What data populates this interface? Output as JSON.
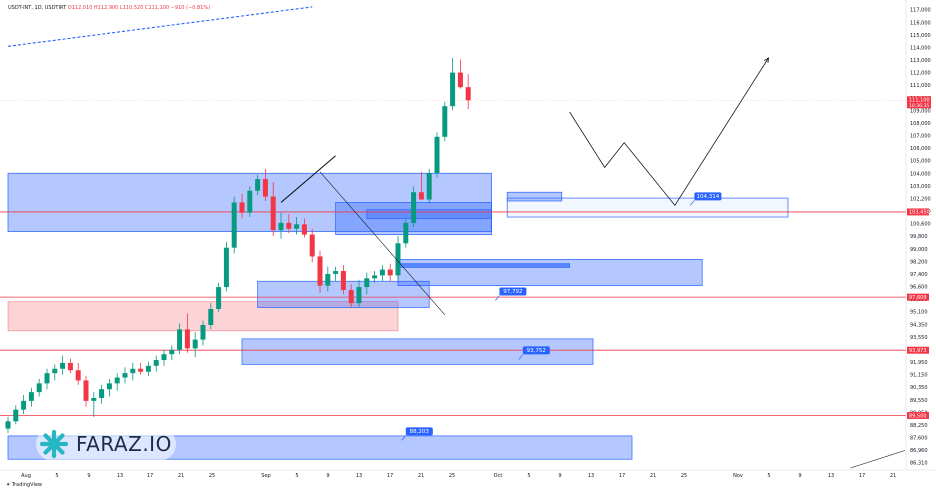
{
  "header": {
    "symbol": "USDT-INT, 1D, USDTIRT",
    "ohlc": "O112,010 H112,900 L110,520 C111,100 −910 (−0.81%)"
  },
  "watermark": {
    "brand": "FARAZ.IO",
    "brand_color": "#26b6c4"
  },
  "footer": {
    "credit": "TradingView"
  },
  "colors": {
    "up": "#089981",
    "down": "#f23645",
    "zone": "#2962ff",
    "level": "#f23645"
  },
  "chart_data": {
    "type": "candlestick",
    "y_axis": {
      "ylim": [
        85900,
        117700
      ],
      "ticks": [
        "117,000",
        "116,000",
        "115,000",
        "114,000",
        "113,000",
        "112,000",
        "111,000",
        "110,000",
        "109,000",
        "108,000",
        "107,000",
        "106,000",
        "105,000",
        "104,000",
        "103,000",
        "102,200",
        "101,400",
        "100,600",
        "99,800",
        "99,000",
        "98,200",
        "97,400",
        "96,600",
        "95,850",
        "95,100",
        "94,350",
        "93,550",
        "92,750",
        "91,950",
        "91,150",
        "90,350",
        "89,550",
        "88,950",
        "88,250",
        "87,600",
        "86,960",
        "86,310"
      ],
      "current_price": "111,100",
      "countdown": "10:36:35",
      "level_tags": [
        "103,450",
        "97,609",
        "93,973",
        "89,500"
      ]
    },
    "x_axis": {
      "ticks": [
        "Aug",
        "5",
        "9",
        "13",
        "17",
        "21",
        "25",
        "Sep",
        "5",
        "9",
        "13",
        "17",
        "21",
        "25",
        "Oct",
        "5",
        "9",
        "13",
        "17",
        "21",
        "25",
        "Nov",
        "5",
        "9",
        "13",
        "17",
        "21"
      ]
    },
    "candles": [
      {
        "o": 88600,
        "h": 89400,
        "l": 88300,
        "c": 89100
      },
      {
        "o": 89100,
        "h": 90200,
        "l": 88900,
        "c": 89900
      },
      {
        "o": 89900,
        "h": 90900,
        "l": 89600,
        "c": 90500
      },
      {
        "o": 90500,
        "h": 91400,
        "l": 90100,
        "c": 91100
      },
      {
        "o": 91100,
        "h": 92000,
        "l": 90800,
        "c": 91700
      },
      {
        "o": 91700,
        "h": 92700,
        "l": 91300,
        "c": 92400
      },
      {
        "o": 92400,
        "h": 93000,
        "l": 91900,
        "c": 92700
      },
      {
        "o": 92700,
        "h": 93600,
        "l": 92300,
        "c": 93100
      },
      {
        "o": 93100,
        "h": 93400,
        "l": 92400,
        "c": 92600
      },
      {
        "o": 92600,
        "h": 93100,
        "l": 91600,
        "c": 91900
      },
      {
        "o": 91900,
        "h": 92200,
        "l": 90100,
        "c": 90500
      },
      {
        "o": 90500,
        "h": 91100,
        "l": 89400,
        "c": 90700
      },
      {
        "o": 90700,
        "h": 91600,
        "l": 90300,
        "c": 91300
      },
      {
        "o": 91300,
        "h": 92000,
        "l": 90800,
        "c": 91700
      },
      {
        "o": 91700,
        "h": 92400,
        "l": 91200,
        "c": 92100
      },
      {
        "o": 92100,
        "h": 92800,
        "l": 91700,
        "c": 92400
      },
      {
        "o": 92400,
        "h": 93100,
        "l": 91900,
        "c": 92700
      },
      {
        "o": 92700,
        "h": 93100,
        "l": 92300,
        "c": 92500
      },
      {
        "o": 92500,
        "h": 93200,
        "l": 92200,
        "c": 92900
      },
      {
        "o": 92900,
        "h": 93600,
        "l": 92500,
        "c": 93300
      },
      {
        "o": 93300,
        "h": 94000,
        "l": 92900,
        "c": 93700
      },
      {
        "o": 93700,
        "h": 94300,
        "l": 93300,
        "c": 94000
      },
      {
        "o": 94000,
        "h": 95800,
        "l": 93700,
        "c": 95400
      },
      {
        "o": 95400,
        "h": 96500,
        "l": 93800,
        "c": 94100
      },
      {
        "o": 94100,
        "h": 95200,
        "l": 93500,
        "c": 94700
      },
      {
        "o": 94700,
        "h": 96000,
        "l": 94300,
        "c": 95700
      },
      {
        "o": 95700,
        "h": 97200,
        "l": 95400,
        "c": 96800
      },
      {
        "o": 96800,
        "h": 98600,
        "l": 96600,
        "c": 98300
      },
      {
        "o": 98300,
        "h": 101400,
        "l": 98000,
        "c": 101000
      },
      {
        "o": 101000,
        "h": 104500,
        "l": 100600,
        "c": 104100
      },
      {
        "o": 104100,
        "h": 104700,
        "l": 103000,
        "c": 103400
      },
      {
        "o": 103400,
        "h": 105200,
        "l": 103100,
        "c": 104900
      },
      {
        "o": 104900,
        "h": 106000,
        "l": 104600,
        "c": 105700
      },
      {
        "o": 105700,
        "h": 106400,
        "l": 104200,
        "c": 104500
      },
      {
        "o": 104500,
        "h": 105500,
        "l": 101800,
        "c": 102200
      },
      {
        "o": 102200,
        "h": 103400,
        "l": 101600,
        "c": 102700
      },
      {
        "o": 102700,
        "h": 103300,
        "l": 102000,
        "c": 102300
      },
      {
        "o": 102300,
        "h": 103100,
        "l": 101900,
        "c": 102600
      },
      {
        "o": 102600,
        "h": 103000,
        "l": 101700,
        "c": 101900
      },
      {
        "o": 101900,
        "h": 102300,
        "l": 100000,
        "c": 100400
      },
      {
        "o": 100400,
        "h": 100800,
        "l": 97900,
        "c": 98400
      },
      {
        "o": 98400,
        "h": 99700,
        "l": 98000,
        "c": 99200
      },
      {
        "o": 99200,
        "h": 99700,
        "l": 98700,
        "c": 99400
      },
      {
        "o": 99400,
        "h": 99800,
        "l": 97800,
        "c": 98100
      },
      {
        "o": 98100,
        "h": 98500,
        "l": 96900,
        "c": 97200
      },
      {
        "o": 97200,
        "h": 98800,
        "l": 96900,
        "c": 98300
      },
      {
        "o": 98300,
        "h": 99300,
        "l": 97800,
        "c": 98900
      },
      {
        "o": 98900,
        "h": 99400,
        "l": 98600,
        "c": 99100
      },
      {
        "o": 99100,
        "h": 99800,
        "l": 98700,
        "c": 99500
      },
      {
        "o": 99500,
        "h": 99900,
        "l": 98700,
        "c": 99100
      },
      {
        "o": 99100,
        "h": 101800,
        "l": 98800,
        "c": 101300
      },
      {
        "o": 101300,
        "h": 103000,
        "l": 101000,
        "c": 102700
      },
      {
        "o": 102700,
        "h": 105200,
        "l": 102400,
        "c": 104800
      },
      {
        "o": 104800,
        "h": 106200,
        "l": 104400,
        "c": 104300
      },
      {
        "o": 104300,
        "h": 106400,
        "l": 104000,
        "c": 106100
      },
      {
        "o": 106100,
        "h": 108900,
        "l": 105800,
        "c": 108600
      },
      {
        "o": 108600,
        "h": 111000,
        "l": 108300,
        "c": 110700
      },
      {
        "o": 110700,
        "h": 114000,
        "l": 110400,
        "c": 113000
      },
      {
        "o": 113000,
        "h": 113900,
        "l": 111900,
        "c": 112000
      },
      {
        "o": 112000,
        "h": 112900,
        "l": 110500,
        "c": 111100
      }
    ],
    "levels": [
      103450,
      97609,
      93973,
      89500
    ],
    "zones": [
      {
        "d0": 0,
        "d1": 62,
        "top": 106100,
        "bot": 102100,
        "filled": true
      },
      {
        "d0": 0,
        "d1": 50,
        "top": 97300,
        "bot": 95300,
        "filled": true,
        "color": "red"
      },
      {
        "d0": 42,
        "d1": 62,
        "top": 104100,
        "bot": 101900,
        "filled": true
      },
      {
        "d0": 46,
        "d1": 62,
        "top": 103600,
        "bot": 103000,
        "filled": true
      },
      {
        "d0": 64,
        "d1": 100,
        "top": 104400,
        "bot": 103100,
        "filled": false
      },
      {
        "d0": 64,
        "d1": 71,
        "top": 104800,
        "bot": 104200,
        "filled": true
      },
      {
        "d0": 50,
        "d1": 89,
        "top": 100200,
        "bot": 98400,
        "filled": true
      },
      {
        "d0": 50,
        "d1": 72,
        "top": 99900,
        "bot": 99650,
        "filled": true,
        "dark": true
      },
      {
        "d0": 32,
        "d1": 54,
        "top": 98700,
        "bot": 96900,
        "filled": true
      },
      {
        "d0": 30,
        "d1": 75,
        "top": 94750,
        "bot": 93000,
        "filled": true
      },
      {
        "d0": 0,
        "d1": 80,
        "top": 88100,
        "bot": 86500,
        "filled": true
      }
    ],
    "zone_labels": [
      {
        "text": "104,314",
        "d": 88,
        "y": 104314
      },
      {
        "text": "97,792",
        "d": 63,
        "y": 97792
      },
      {
        "text": "93,752",
        "d": 66,
        "y": 93752
      },
      {
        "text": "88,203",
        "d": 51,
        "y": 88203
      }
    ],
    "projection": [
      {
        "d": 72,
        "y": 110300
      },
      {
        "d": 76.5,
        "y": 106500
      },
      {
        "d": 79,
        "y": 108200
      },
      {
        "d": 85.5,
        "y": 103900
      },
      {
        "d": 97.5,
        "y": 114000
      }
    ],
    "trendlines": [
      {
        "d0": 0,
        "y0": 114800,
        "d1": 39,
        "y1": 117500,
        "dashed": true
      },
      {
        "d0": 35,
        "y0": 104100,
        "d1": 42,
        "y1": 107300
      },
      {
        "d0": 40,
        "y0": 106200,
        "d1": 56,
        "y1": 96400,
        "thin": true
      },
      {
        "d0": 108,
        "y0": 85900,
        "d1": 115,
        "y1": 87100,
        "thin": true
      }
    ]
  }
}
